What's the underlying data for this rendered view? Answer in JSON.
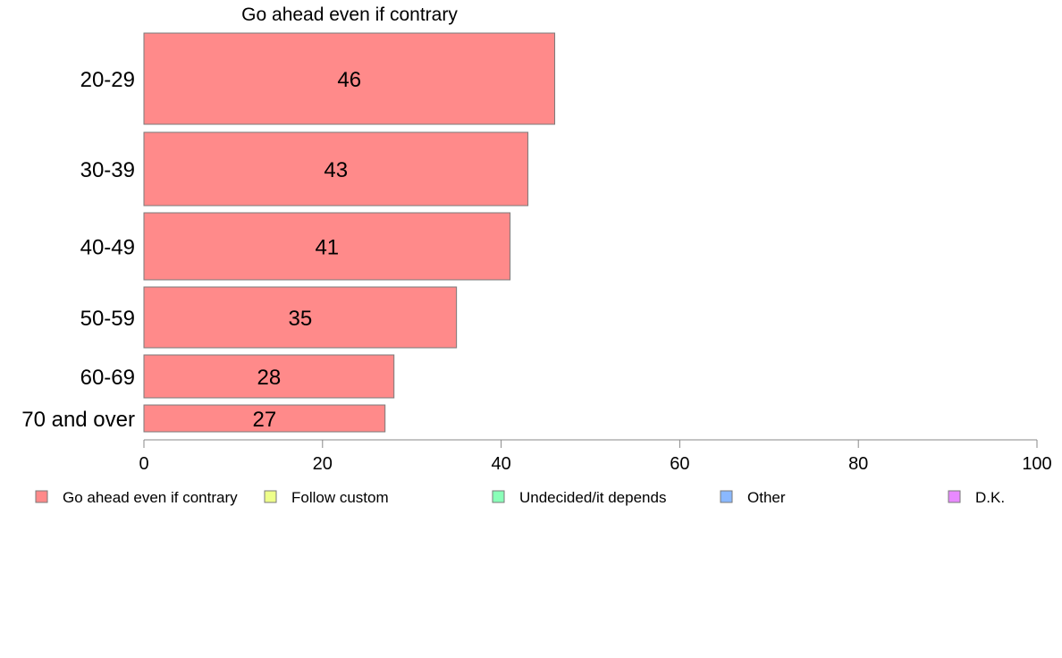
{
  "chart_data": {
    "type": "bar",
    "orientation": "horizontal",
    "title": "Go ahead even if contrary",
    "categories": [
      "20-29",
      "30-39",
      "40-49",
      "50-59",
      "60-69",
      "70 and over"
    ],
    "series": [
      {
        "name": "Go ahead even if contrary",
        "values": [
          46,
          43,
          41,
          35,
          28,
          27
        ],
        "color": "#ff8a8a"
      }
    ],
    "data_labels": [
      "46",
      "43",
      "41",
      "35",
      "28",
      "27"
    ],
    "xlim": [
      0,
      100
    ],
    "xticks": [
      0,
      20,
      40,
      60,
      80,
      100
    ],
    "grid": false,
    "legend_position": "bottom",
    "legend": [
      {
        "label": "Go ahead even if contrary",
        "color": "#ff8a8a"
      },
      {
        "label": "Follow custom",
        "color": "#eeff8a"
      },
      {
        "label": "Undecided/it depends",
        "color": "#8affb8"
      },
      {
        "label": "Other",
        "color": "#8ab8ff"
      },
      {
        "label": "D.K.",
        "color": "#e88aff"
      }
    ]
  }
}
